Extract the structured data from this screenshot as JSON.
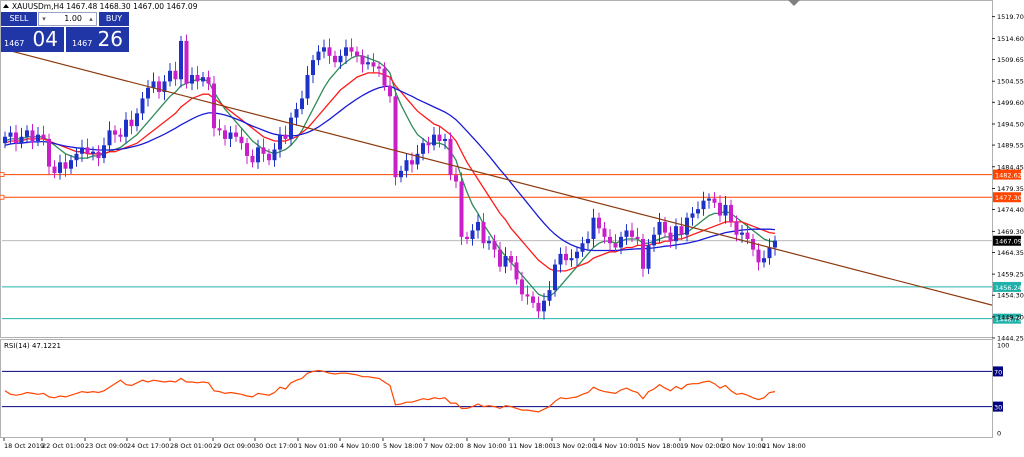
{
  "window": {
    "symbol_header": "XAUUSDm,H4  1467.48 1468.30 1467.00 1467.09"
  },
  "trade_panel": {
    "sell_label": "SELL",
    "buy_label": "BUY",
    "lot": "1.00",
    "sell_small": "1467",
    "sell_big": "04",
    "buy_small": "1467",
    "buy_big": "26"
  },
  "colors": {
    "bull": "#1f32c8",
    "bear": "#c81fc8",
    "ma_fast": "#2e8b57",
    "ma_mid": "#ff1a1a",
    "ma_slow": "#1a1ad6",
    "trendline": "#8b3a0f",
    "resistance": "#ff4500",
    "support": "#20b2aa",
    "rsi": "#ff4500",
    "rsi_levels": "#000080",
    "current_price": "#a0a0a0"
  },
  "chart_data": [
    {
      "type": "candlestick",
      "title": "XAUUSDm,H4",
      "ylim": [
        1444.25,
        1521.5
      ],
      "y_ticks": [
        1519.7,
        1514.6,
        1509.65,
        1504.55,
        1499.6,
        1494.5,
        1489.55,
        1484.45,
        1479.35,
        1474.4,
        1469.3,
        1464.35,
        1459.25,
        1454.3,
        1449.2,
        1444.25
      ],
      "x_tick_labels": [
        "18 Oct 2019",
        "22 Oct 01:00",
        "23 Oct 09:00",
        "24 Oct 17:00",
        "28 Oct 01:00",
        "29 Oct 09:00",
        "30 Oct 17:00",
        "1 Nov 01:00",
        "4 Nov 10:00",
        "5 Nov 18:00",
        "7 Nov 02:00",
        "8 Nov 10:00",
        "11 Nov 18:00",
        "13 Nov 02:00",
        "14 Nov 10:00",
        "15 Nov 18:00",
        "19 Nov 02:00",
        "20 Nov 10:00",
        "21 Nov 18:00"
      ],
      "close": [
        1491.5,
        1492.5,
        1490.0,
        1491.5,
        1493.0,
        1490.5,
        1492.0,
        1491.0,
        1484.5,
        1483.0,
        1485.5,
        1484.0,
        1486.0,
        1487.5,
        1489.0,
        1487.5,
        1488.0,
        1486.5,
        1489.5,
        1493.0,
        1492.0,
        1491.5,
        1495.5,
        1494.0,
        1497.0,
        1500.5,
        1503.0,
        1504.5,
        1502.0,
        1504.5,
        1507.0,
        1505.0,
        1514.0,
        1504.0,
        1506.0,
        1504.5,
        1505.5,
        1504.0,
        1493.5,
        1493.0,
        1491.0,
        1492.5,
        1491.5,
        1490.0,
        1487.0,
        1485.5,
        1489.0,
        1487.5,
        1486.0,
        1488.5,
        1492.0,
        1491.0,
        1496.0,
        1498.0,
        1500.5,
        1506.0,
        1509.5,
        1511.5,
        1512.5,
        1510.5,
        1509.0,
        1510.5,
        1512.5,
        1511.5,
        1510.5,
        1508.5,
        1509.0,
        1508.0,
        1507.5,
        1503.5,
        1501.0,
        1482.0,
        1483.5,
        1486.0,
        1485.0,
        1487.5,
        1490.0,
        1489.5,
        1492.0,
        1490.5,
        1491.0,
        1482.5,
        1481.0,
        1468.0,
        1467.5,
        1469.5,
        1471.5,
        1466.5,
        1467.0,
        1465.0,
        1461.0,
        1463.5,
        1462.0,
        1458.0,
        1454.5,
        1454.0,
        1452.5,
        1450.5,
        1453.0,
        1455.5,
        1461.5,
        1464.0,
        1462.5,
        1463.0,
        1464.5,
        1466.5,
        1467.5,
        1472.5,
        1470.0,
        1468.0,
        1466.5,
        1465.5,
        1468.0,
        1469.5,
        1468.0,
        1467.5,
        1460.5,
        1466.0,
        1468.5,
        1471.5,
        1469.0,
        1467.0,
        1470.5,
        1468.5,
        1472.5,
        1473.5,
        1474.5,
        1476.5,
        1477.0,
        1476.0,
        1473.0,
        1475.5,
        1471.5,
        1468.5,
        1469.0,
        1467.5,
        1465.0,
        1462.0,
        1463.0,
        1465.5,
        1467.1
      ],
      "open": [
        1490.0,
        1491.5,
        1492.5,
        1490.0,
        1491.5,
        1493.0,
        1490.5,
        1492.0,
        1491.0,
        1484.5,
        1483.0,
        1485.5,
        1484.0,
        1486.0,
        1487.5,
        1489.0,
        1487.5,
        1488.0,
        1486.5,
        1489.5,
        1493.0,
        1492.0,
        1491.5,
        1495.5,
        1494.0,
        1497.0,
        1500.5,
        1503.0,
        1504.5,
        1502.0,
        1504.5,
        1507.0,
        1505.0,
        1514.0,
        1504.0,
        1506.0,
        1504.5,
        1505.5,
        1504.0,
        1493.5,
        1493.0,
        1491.0,
        1492.5,
        1491.5,
        1490.0,
        1487.0,
        1485.5,
        1489.0,
        1487.5,
        1486.0,
        1488.5,
        1492.0,
        1491.0,
        1496.0,
        1498.0,
        1500.5,
        1506.0,
        1509.5,
        1511.5,
        1512.5,
        1510.5,
        1509.0,
        1510.5,
        1512.5,
        1511.5,
        1510.5,
        1508.5,
        1509.0,
        1508.0,
        1507.5,
        1503.5,
        1501.0,
        1482.0,
        1483.5,
        1486.0,
        1485.0,
        1487.5,
        1490.0,
        1489.5,
        1492.0,
        1490.5,
        1491.0,
        1482.5,
        1481.0,
        1468.0,
        1467.5,
        1469.5,
        1471.5,
        1466.5,
        1467.0,
        1465.0,
        1461.0,
        1463.5,
        1462.0,
        1458.0,
        1454.5,
        1454.0,
        1452.5,
        1450.5,
        1453.0,
        1455.5,
        1461.5,
        1464.0,
        1462.5,
        1463.0,
        1464.5,
        1466.5,
        1467.5,
        1472.5,
        1470.0,
        1468.0,
        1466.5,
        1465.5,
        1468.0,
        1469.5,
        1468.0,
        1467.5,
        1460.5,
        1466.0,
        1468.5,
        1471.5,
        1469.0,
        1467.0,
        1470.5,
        1468.5,
        1472.5,
        1473.5,
        1474.5,
        1476.5,
        1477.0,
        1476.0,
        1473.0,
        1475.5,
        1471.5,
        1468.5,
        1469.0,
        1467.5,
        1465.0,
        1462.0,
        1463.0,
        1465.5
      ],
      "ma_fast": [
        1490.5,
        1491.0,
        1491.0,
        1491.0,
        1491.5,
        1491.5,
        1491.5,
        1491.5,
        1490.5,
        1489.5,
        1488.5,
        1487.5,
        1487.0,
        1486.5,
        1486.5,
        1486.5,
        1487.0,
        1487.0,
        1487.5,
        1488.0,
        1488.5,
        1489.0,
        1490.0,
        1491.0,
        1492.0,
        1493.5,
        1495.0,
        1496.5,
        1498.0,
        1499.5,
        1501.0,
        1502.0,
        1503.5,
        1504.0,
        1504.5,
        1505.0,
        1505.0,
        1504.5,
        1502.0,
        1500.0,
        1498.0,
        1496.5,
        1495.0,
        1493.5,
        1492.0,
        1490.5,
        1489.5,
        1488.5,
        1488.0,
        1487.5,
        1488.0,
        1488.5,
        1489.5,
        1491.0,
        1493.0,
        1495.5,
        1498.0,
        1500.5,
        1503.0,
        1505.0,
        1506.5,
        1508.0,
        1509.0,
        1510.0,
        1510.5,
        1510.5,
        1510.0,
        1509.5,
        1509.0,
        1508.0,
        1506.5,
        1502.0,
        1499.0,
        1496.5,
        1494.0,
        1492.0,
        1491.0,
        1490.0,
        1490.0,
        1490.0,
        1489.5,
        1488.0,
        1486.0,
        1482.0,
        1478.5,
        1475.5,
        1473.5,
        1471.0,
        1469.0,
        1467.0,
        1465.0,
        1463.5,
        1462.0,
        1460.5,
        1459.0,
        1457.5,
        1456.0,
        1454.5,
        1454.0,
        1454.0,
        1455.0,
        1456.5,
        1458.0,
        1459.5,
        1461.0,
        1462.5,
        1464.0,
        1465.5,
        1466.5,
        1467.0,
        1467.0,
        1466.5,
        1467.0,
        1467.5,
        1467.5,
        1467.5,
        1466.5,
        1466.5,
        1467.0,
        1467.5,
        1468.0,
        1468.0,
        1468.5,
        1468.5,
        1469.0,
        1470.0,
        1471.0,
        1472.0,
        1473.0,
        1473.5,
        1473.5,
        1474.0,
        1473.5,
        1472.5,
        1471.5,
        1470.5,
        1469.5,
        1468.5,
        1467.5,
        1467.0,
        1466.8
      ],
      "ma_mid": [
        1490.0,
        1490.5,
        1490.5,
        1490.5,
        1491.0,
        1491.0,
        1491.0,
        1491.0,
        1490.5,
        1490.0,
        1489.5,
        1489.0,
        1488.5,
        1488.0,
        1488.0,
        1487.5,
        1487.5,
        1487.5,
        1487.5,
        1488.0,
        1488.0,
        1488.5,
        1489.0,
        1489.5,
        1490.0,
        1491.0,
        1492.0,
        1493.0,
        1494.0,
        1495.0,
        1496.0,
        1497.0,
        1498.5,
        1499.5,
        1500.5,
        1501.0,
        1501.5,
        1501.5,
        1500.5,
        1499.5,
        1498.5,
        1497.5,
        1496.5,
        1495.5,
        1494.5,
        1493.5,
        1492.5,
        1491.5,
        1491.0,
        1490.5,
        1490.5,
        1490.5,
        1491.0,
        1491.5,
        1492.5,
        1493.5,
        1495.0,
        1496.5,
        1498.0,
        1499.5,
        1501.0,
        1502.5,
        1503.5,
        1504.5,
        1505.5,
        1506.0,
        1506.5,
        1506.5,
        1506.5,
        1506.0,
        1505.5,
        1503.5,
        1502.0,
        1500.5,
        1499.0,
        1497.5,
        1496.5,
        1495.5,
        1494.5,
        1494.0,
        1493.0,
        1492.0,
        1490.5,
        1488.0,
        1485.5,
        1483.5,
        1481.5,
        1479.5,
        1477.5,
        1475.5,
        1473.5,
        1472.0,
        1470.0,
        1468.5,
        1467.0,
        1465.5,
        1464.0,
        1462.5,
        1461.5,
        1460.5,
        1460.0,
        1460.0,
        1460.0,
        1460.5,
        1461.0,
        1461.5,
        1462.0,
        1463.0,
        1463.5,
        1464.0,
        1464.5,
        1464.5,
        1465.0,
        1465.5,
        1465.5,
        1466.0,
        1466.0,
        1466.0,
        1466.5,
        1466.5,
        1467.0,
        1467.0,
        1467.5,
        1467.5,
        1468.0,
        1468.5,
        1469.0,
        1469.5,
        1470.0,
        1470.5,
        1471.0,
        1471.5,
        1471.5,
        1471.5,
        1471.5,
        1471.0,
        1470.5,
        1470.0,
        1469.5,
        1469.0,
        1468.8
      ],
      "ma_slow": [
        1489.5,
        1489.8,
        1490.0,
        1490.0,
        1490.2,
        1490.3,
        1490.3,
        1490.4,
        1490.2,
        1489.9,
        1489.6,
        1489.3,
        1489.1,
        1488.9,
        1488.8,
        1488.6,
        1488.5,
        1488.4,
        1488.4,
        1488.4,
        1488.5,
        1488.6,
        1488.8,
        1489.1,
        1489.4,
        1489.8,
        1490.3,
        1490.9,
        1491.5,
        1492.1,
        1492.8,
        1493.5,
        1494.3,
        1495.0,
        1495.7,
        1496.3,
        1496.8,
        1497.1,
        1497.1,
        1496.9,
        1496.6,
        1496.2,
        1495.7,
        1495.2,
        1494.6,
        1494.0,
        1493.5,
        1493.0,
        1492.5,
        1492.1,
        1491.9,
        1491.7,
        1491.7,
        1491.8,
        1492.1,
        1492.5,
        1493.1,
        1493.8,
        1494.7,
        1495.6,
        1496.6,
        1497.6,
        1498.6,
        1499.5,
        1500.4,
        1501.2,
        1501.9,
        1502.5,
        1503.0,
        1503.3,
        1503.4,
        1502.8,
        1502.2,
        1501.6,
        1501.0,
        1500.3,
        1499.7,
        1499.1,
        1498.5,
        1497.9,
        1497.3,
        1496.5,
        1495.5,
        1494.2,
        1492.8,
        1491.4,
        1490.0,
        1488.5,
        1487.0,
        1485.4,
        1483.8,
        1482.3,
        1480.7,
        1479.1,
        1477.5,
        1475.9,
        1474.3,
        1472.7,
        1471.2,
        1469.8,
        1468.6,
        1467.6,
        1466.8,
        1466.1,
        1465.6,
        1465.2,
        1464.9,
        1464.8,
        1464.8,
        1464.8,
        1464.8,
        1464.8,
        1464.9,
        1465.0,
        1465.1,
        1465.2,
        1465.2,
        1465.3,
        1465.4,
        1465.6,
        1465.8,
        1465.9,
        1466.1,
        1466.3,
        1466.5,
        1466.8,
        1467.1,
        1467.5,
        1467.9,
        1468.3,
        1468.6,
        1469.0,
        1469.2,
        1469.4,
        1469.6,
        1469.7,
        1469.8,
        1469.8,
        1469.8,
        1469.8,
        1469.7
      ],
      "trendline": {
        "from": {
          "x": 0,
          "y": 1512.0
        },
        "to": {
          "x": 142,
          "y": 1464.5
        },
        "extend_to_x": 164
      },
      "hlines": [
        {
          "label": "1482.62",
          "value": 1482.62,
          "role": "resistance"
        },
        {
          "label": "1477.30",
          "value": 1477.3,
          "role": "resistance"
        },
        {
          "label": "1456.24",
          "value": 1456.24,
          "role": "support"
        },
        {
          "label": "1448.79",
          "value": 1448.79,
          "role": "support"
        }
      ],
      "current_price": {
        "label": "1467.09",
        "value": 1467.09
      },
      "corner_label_values": [
        1482.62,
        1477.3
      ]
    },
    {
      "type": "line",
      "title": "RSI(14) 47.1221",
      "ylim": [
        0,
        100
      ],
      "y_tick_labels": [
        "100",
        "70",
        "30",
        "0"
      ],
      "levels": [
        {
          "value": 70,
          "label": "70"
        },
        {
          "value": 30,
          "label": "30"
        }
      ],
      "values": [
        48,
        44,
        43,
        44,
        46,
        45,
        44,
        45,
        41,
        40,
        42,
        41,
        43,
        45,
        47,
        46,
        47,
        46,
        48,
        52,
        56,
        60,
        55,
        54,
        57,
        60,
        58,
        60,
        59,
        58,
        59,
        58,
        62,
        58,
        58,
        57,
        58,
        57,
        48,
        47,
        45,
        46,
        45,
        44,
        42,
        41,
        45,
        44,
        43,
        46,
        52,
        50,
        57,
        60,
        62,
        68,
        70,
        71,
        70,
        68,
        67,
        68,
        68,
        67,
        66,
        64,
        64,
        63,
        62,
        58,
        54,
        32,
        33,
        35,
        35,
        37,
        39,
        38,
        40,
        39,
        40,
        34,
        34,
        28,
        28,
        30,
        33,
        30,
        31,
        30,
        28,
        31,
        30,
        28,
        26,
        26,
        25,
        24,
        27,
        30,
        36,
        40,
        39,
        40,
        41,
        44,
        46,
        52,
        49,
        47,
        46,
        45,
        49,
        51,
        48,
        46,
        39,
        47,
        50,
        55,
        51,
        48,
        53,
        50,
        55,
        56,
        56,
        58,
        59,
        56,
        51,
        54,
        48,
        44,
        45,
        43,
        40,
        38,
        40,
        46,
        47.1
      ]
    }
  ]
}
